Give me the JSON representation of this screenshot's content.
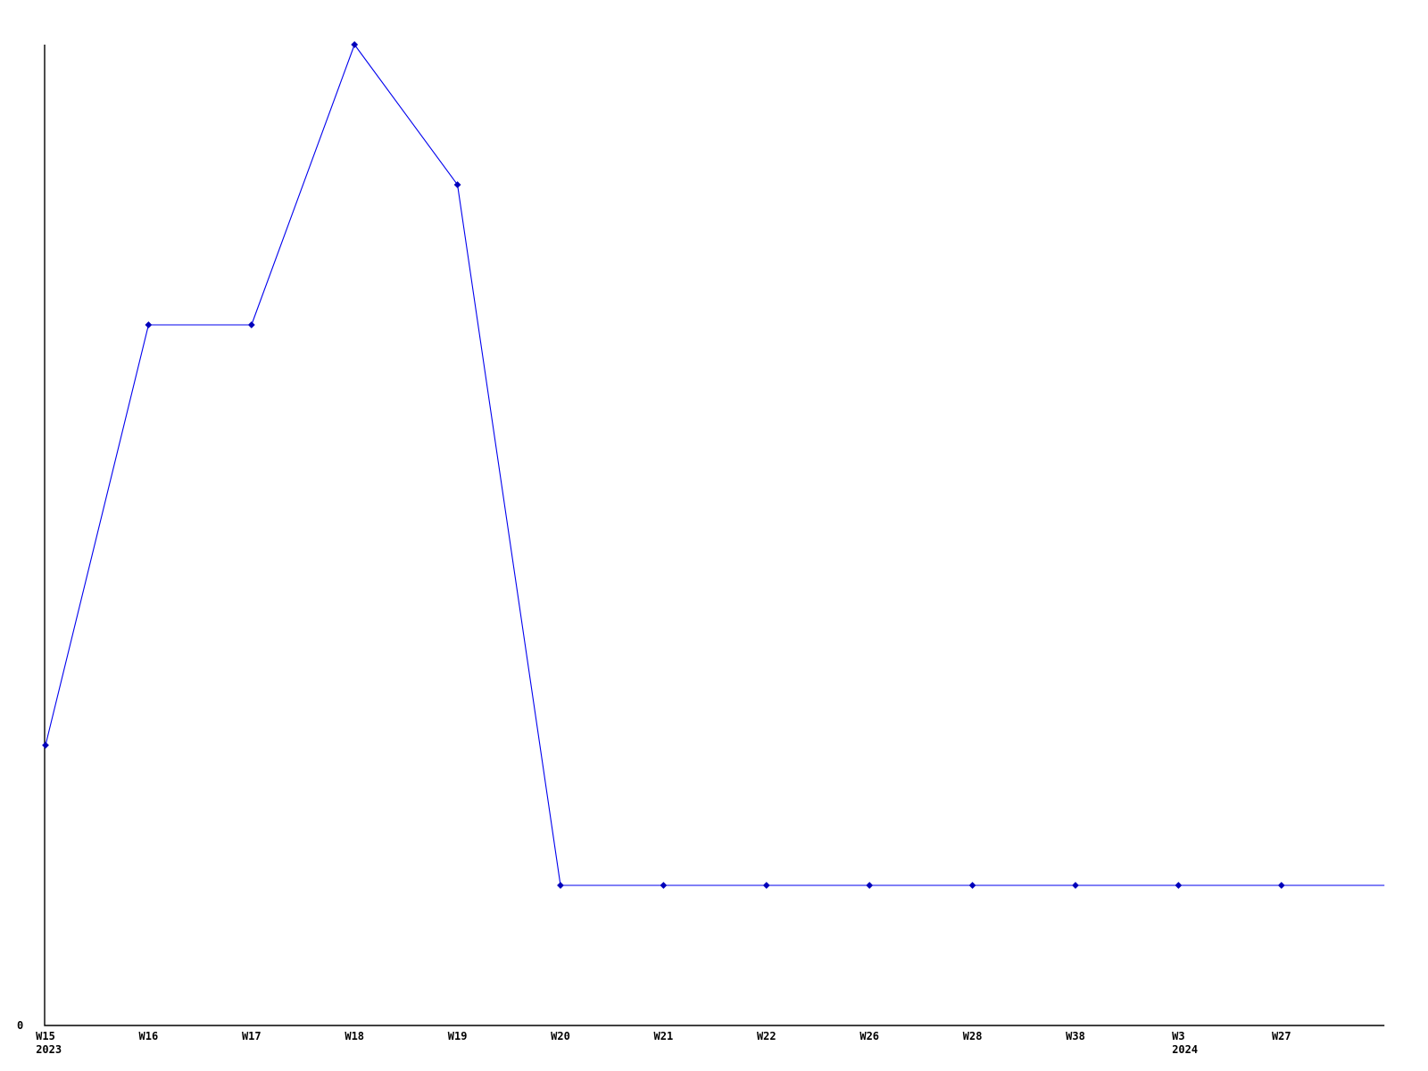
{
  "chart_data": {
    "type": "line",
    "title": "",
    "xlabel": "",
    "ylabel": "",
    "categories": [
      "W15",
      "W16",
      "W17",
      "W18",
      "W19",
      "W20",
      "W21",
      "W22",
      "W26",
      "W28",
      "W38",
      "W3",
      "W27"
    ],
    "year_labels": [
      "2023",
      "",
      "",
      "",
      "",
      "",
      "",
      "",
      "",
      "",
      "",
      "2024",
      ""
    ],
    "values": [
      2,
      5,
      5,
      7,
      6,
      1,
      1,
      1,
      1,
      1,
      1,
      1,
      1
    ],
    "trailing_value": 1,
    "ylim": [
      0,
      7
    ],
    "y_axis": {
      "tick_labels": [
        "0"
      ]
    },
    "grid": false,
    "legend": false,
    "colors": {
      "line": "#0000ee",
      "marker": "#0000bb",
      "axis": "#000000",
      "text": "#000000",
      "background": "#ffffff"
    }
  }
}
